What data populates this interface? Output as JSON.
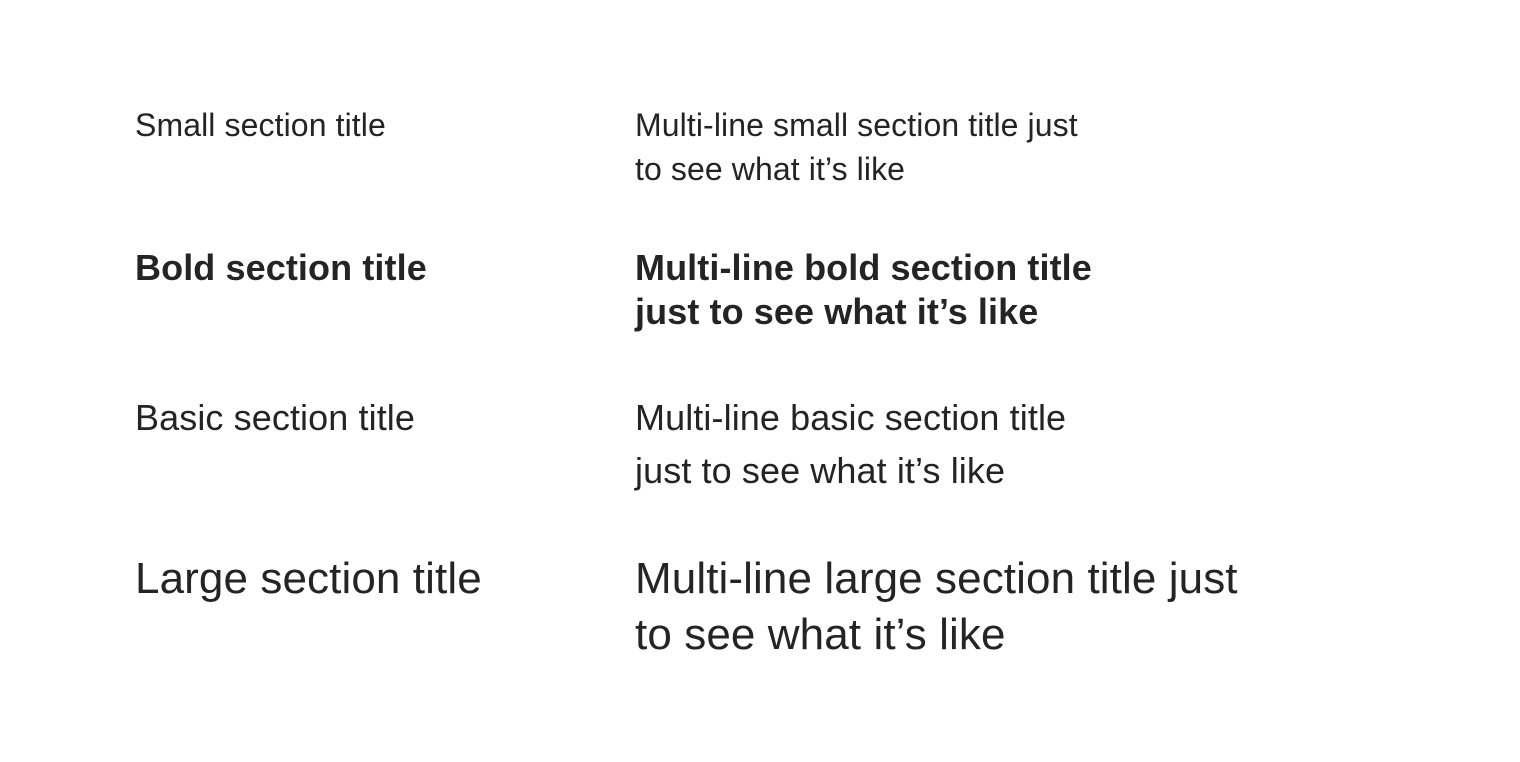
{
  "titles": {
    "small": {
      "single": "Small section title",
      "multi": "Multi-line small section title just\nto see what it’s like"
    },
    "bold": {
      "single": "Bold section title",
      "multi": "Multi-line bold section title\njust to see what it’s like"
    },
    "basic": {
      "single": "Basic section title",
      "multi": "Multi-line basic section title\njust to see what it’s like"
    },
    "large": {
      "single": "Large section title",
      "multi": "Multi-line large section title just\nto see what it’s like"
    }
  },
  "colors": {
    "text": "#242424",
    "background": "#ffffff"
  }
}
